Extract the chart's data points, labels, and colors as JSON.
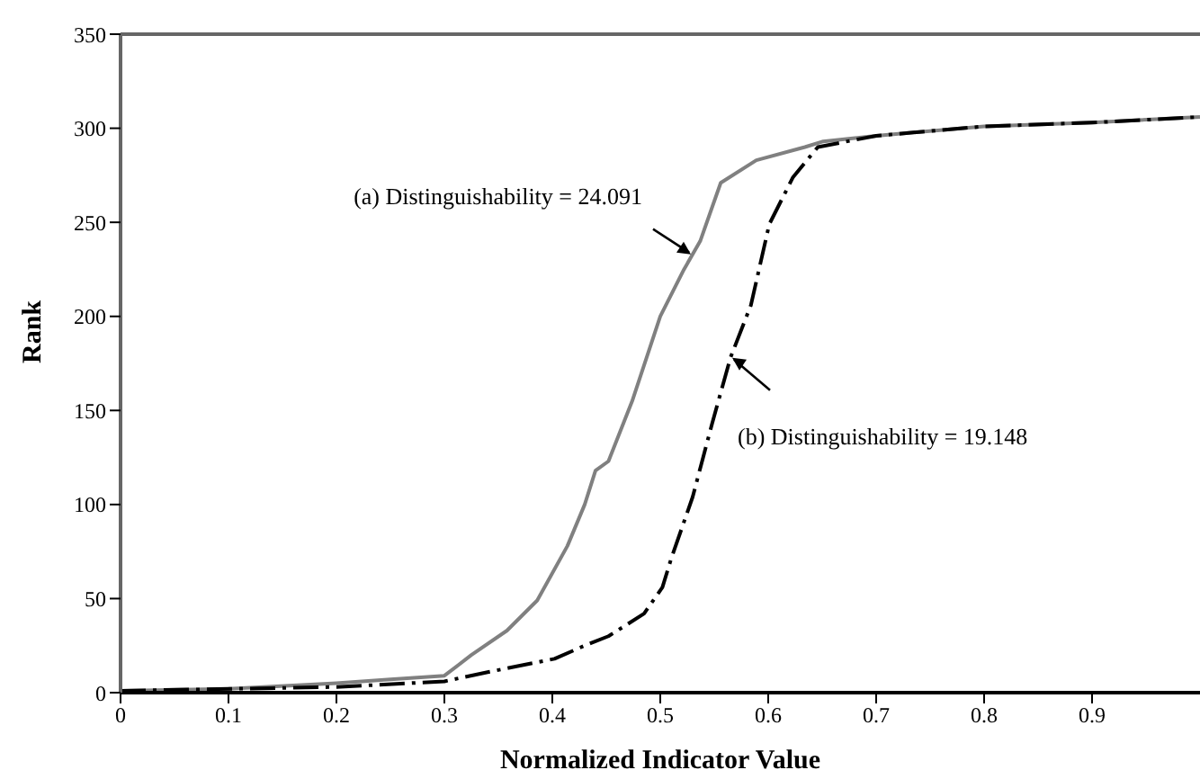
{
  "chart_data": {
    "type": "line",
    "xlabel": "Normalized Indicator Value",
    "ylabel": "Rank",
    "xlim": [
      0,
      1
    ],
    "xticks": [
      0,
      0.1,
      0.2,
      0.3,
      0.4,
      0.5,
      0.6,
      0.7,
      0.8,
      0.9
    ],
    "ylim": [
      0,
      350
    ],
    "yticks": [
      0,
      50,
      100,
      150,
      200,
      250,
      300,
      350
    ],
    "marker": "none",
    "series": [
      {
        "color": "#808080",
        "line_style": "solid",
        "x": [
          0,
          0.1,
          0.2,
          0.25,
          0.3,
          0.325,
          0.358,
          0.386,
          0.414,
          0.43,
          0.44,
          0.452,
          0.474,
          0.5,
          0.522,
          0.537,
          0.556,
          0.589,
          0.634,
          0.651,
          0.7,
          0.8,
          0.9,
          1
        ],
        "values": [
          1,
          2,
          5,
          7,
          9,
          20,
          33,
          49,
          78,
          100,
          118,
          123,
          155,
          200,
          225,
          240,
          271,
          283,
          290,
          293,
          296,
          301,
          303,
          306
        ]
      },
      {
        "color": "#000000",
        "line_style": "dashed",
        "x": [
          0,
          0.1,
          0.2,
          0.3,
          0.341,
          0.402,
          0.43,
          0.452,
          0.485,
          0.502,
          0.51,
          0.53,
          0.548,
          0.565,
          0.584,
          0.601,
          0.623,
          0.646,
          0.7,
          0.8,
          0.9,
          1
        ],
        "values": [
          1,
          2,
          3,
          6,
          11,
          18,
          25,
          30,
          42,
          56,
          71,
          104,
          143,
          178,
          206,
          249,
          274,
          290,
          296,
          301,
          303,
          306
        ]
      }
    ],
    "annotations": [
      {
        "text": "(a) Distinguishability = 24.091",
        "x": 0.53,
        "y": 233
      },
      {
        "text": "(b) Distinguishability = 19.148",
        "x": 0.565,
        "y": 178
      }
    ]
  }
}
